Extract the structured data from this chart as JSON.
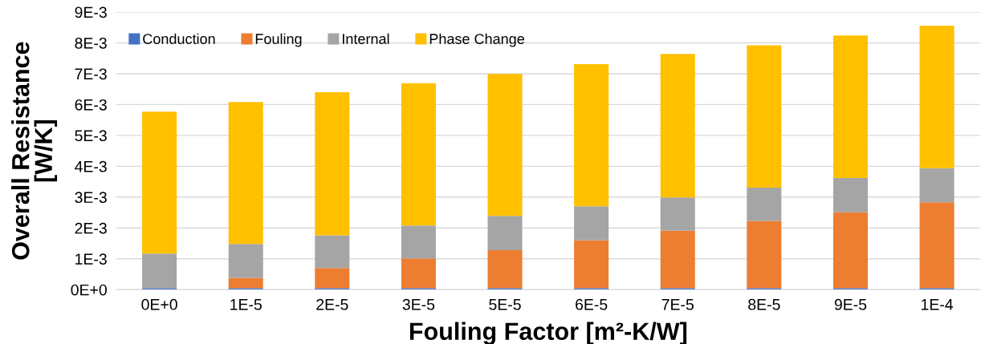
{
  "chart_data": {
    "type": "bar",
    "stacked": true,
    "xlabel": "Fouling Factor [m²-K/W]",
    "ylabel": "Overall Resistance\n[W/K]",
    "categories": [
      "0E+0",
      "1E-5",
      "2E-5",
      "3E-5",
      "5E-5",
      "6E-5",
      "7E-5",
      "8E-5",
      "9E-5",
      "1E-4"
    ],
    "series": [
      {
        "name": "Conduction",
        "color": "#4472c4",
        "values": [
          5e-05,
          5e-05,
          5e-05,
          5e-05,
          5e-05,
          5e-05,
          5e-05,
          5e-05,
          5e-05,
          5e-05
        ]
      },
      {
        "name": "Fouling",
        "color": "#ed7d31",
        "values": [
          0,
          0.00033,
          0.00065,
          0.00096,
          0.00123,
          0.00155,
          0.00186,
          0.00218,
          0.00246,
          0.00278
        ]
      },
      {
        "name": "Internal",
        "color": "#a5a5a5",
        "values": [
          0.00112,
          0.0011,
          0.00106,
          0.00107,
          0.00111,
          0.0011,
          0.00108,
          0.00108,
          0.00111,
          0.00111
        ]
      },
      {
        "name": "Phase Change",
        "color": "#ffc000",
        "values": [
          0.0046,
          0.0046,
          0.00464,
          0.00461,
          0.0046,
          0.00461,
          0.00465,
          0.00461,
          0.00462,
          0.00462
        ]
      }
    ],
    "ylim": [
      0,
      0.009
    ],
    "yticks": [
      {
        "value": 0,
        "label": "0E+0"
      },
      {
        "value": 0.001,
        "label": "1E-3"
      },
      {
        "value": 0.002,
        "label": "2E-3"
      },
      {
        "value": 0.003,
        "label": "3E-3"
      },
      {
        "value": 0.004,
        "label": "4E-3"
      },
      {
        "value": 0.005,
        "label": "5E-3"
      },
      {
        "value": 0.006,
        "label": "6E-3"
      },
      {
        "value": 0.007,
        "label": "7E-3"
      },
      {
        "value": 0.008,
        "label": "8E-3"
      },
      {
        "value": 0.009,
        "label": "9E-3"
      }
    ],
    "grid": "y",
    "legend": "top left"
  }
}
